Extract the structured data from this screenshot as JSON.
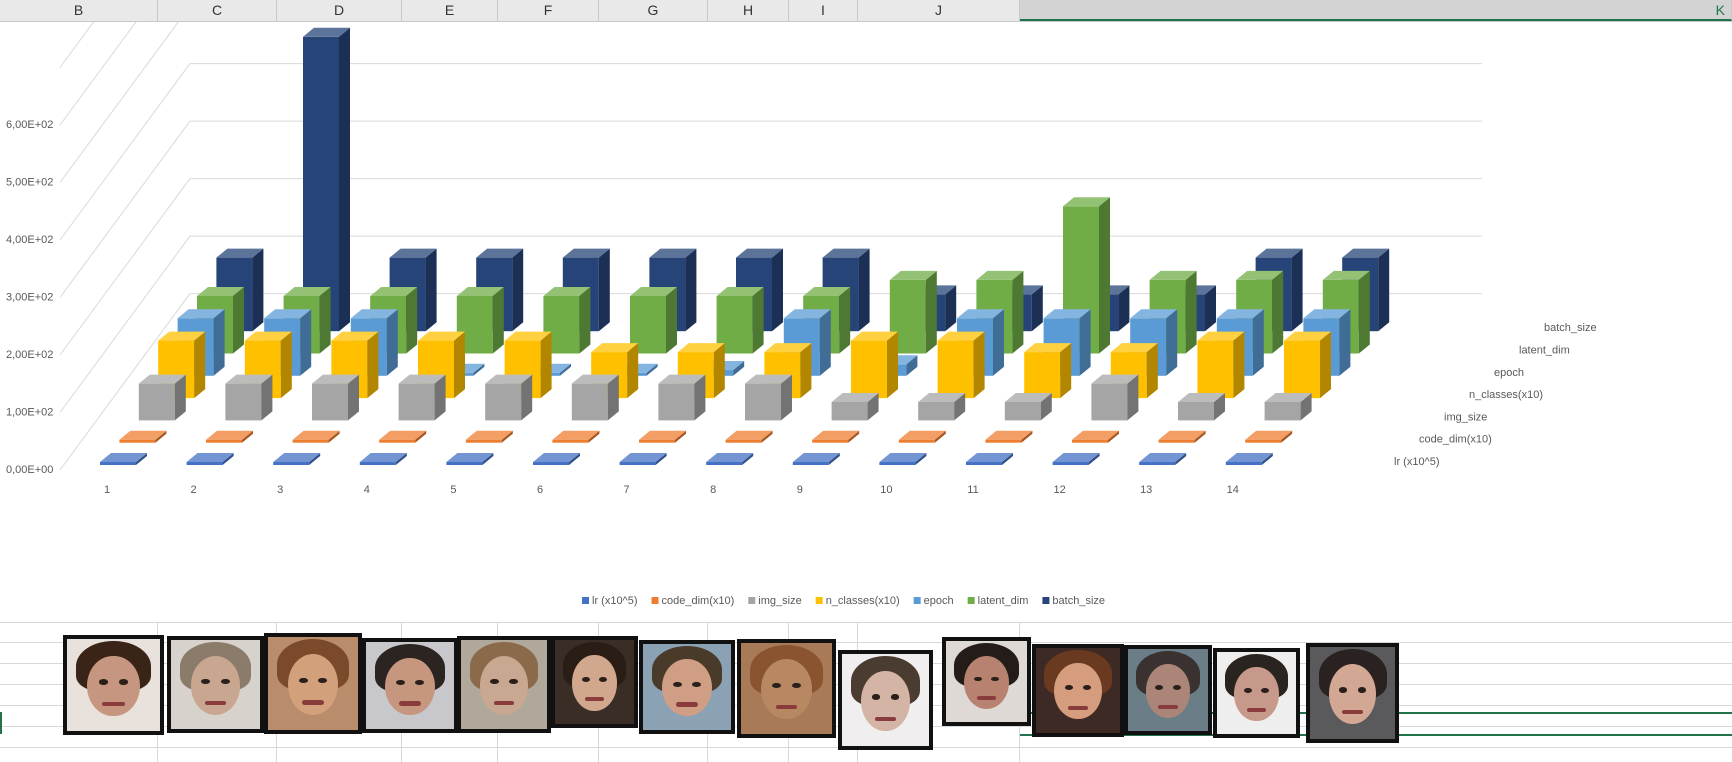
{
  "column_headers": [
    "B",
    "C",
    "D",
    "E",
    "F",
    "G",
    "H",
    "I",
    "J",
    "K"
  ],
  "selected_column": "K",
  "chart_data": {
    "type": "bar",
    "subtype": "3d-column",
    "categories": [
      "1",
      "2",
      "3",
      "4",
      "5",
      "6",
      "7",
      "8",
      "9",
      "10",
      "11",
      "12",
      "13",
      "14"
    ],
    "y_tick_labels": [
      "0,00E+00",
      "1,00E+02",
      "2,00E+02",
      "3,00E+02",
      "4,00E+02",
      "5,00E+02",
      "6,00E+02"
    ],
    "ylim": [
      0,
      700
    ],
    "grid": true,
    "legend_position": "bottom",
    "series": [
      {
        "name": "lr (x10^5)",
        "color": "#4472c4",
        "values": [
          2,
          2,
          2,
          2,
          5,
          5,
          5,
          5,
          5,
          5,
          5,
          5,
          5,
          5
        ]
      },
      {
        "name": "code_dim(x10)",
        "color": "#ed7d31",
        "values": [
          5,
          5,
          5,
          5,
          5,
          5,
          5,
          5,
          5,
          5,
          5,
          5,
          5,
          5
        ]
      },
      {
        "name": "img_size",
        "color": "#a5a5a5",
        "values": [
          64,
          64,
          64,
          64,
          64,
          64,
          64,
          64,
          32,
          32,
          32,
          64,
          32,
          32
        ]
      },
      {
        "name": "n_classes(x10)",
        "color": "#ffc000",
        "values": [
          100,
          100,
          100,
          100,
          100,
          80,
          80,
          80,
          100,
          100,
          80,
          80,
          100,
          100
        ]
      },
      {
        "name": "epoch",
        "color": "#5b9bd5",
        "values": [
          100,
          100,
          100,
          5,
          5,
          5,
          10,
          100,
          20,
          100,
          100,
          100,
          100,
          100
        ]
      },
      {
        "name": "latent_dim",
        "color": "#70ad47",
        "values": [
          100,
          100,
          100,
          100,
          100,
          100,
          100,
          100,
          128,
          128,
          256,
          128,
          128,
          128
        ]
      },
      {
        "name": "batch_size",
        "color": "#264478",
        "values": [
          128,
          512,
          128,
          128,
          128,
          128,
          128,
          128,
          64,
          64,
          64,
          64,
          128,
          128
        ]
      }
    ]
  },
  "faces": [
    {
      "hair": "#3a2418",
      "skin": "#c79680",
      "bg": "#e9e2dc"
    },
    {
      "hair": "#8a7b6a",
      "skin": "#c9a690",
      "bg": "#d7d2cc"
    },
    {
      "hair": "#7a4a2a",
      "skin": "#d3a07c",
      "bg": "#b98c6b"
    },
    {
      "hair": "#2b2420",
      "skin": "#c6977e",
      "bg": "#c8c8cc"
    },
    {
      "hair": "#8a6a4a",
      "skin": "#c9a892",
      "bg": "#b0a89a"
    },
    {
      "hair": "#2a1d16",
      "skin": "#d1a88e",
      "bg": "#3a2d25"
    },
    {
      "hair": "#4a3a2a",
      "skin": "#cf9e84",
      "bg": "#8aa2b4"
    },
    {
      "hair": "#8a5430",
      "skin": "#b88863",
      "bg": "#a87a58"
    },
    {
      "hair": "#4a3c30",
      "skin": "#d4b4a4",
      "bg": "#f0eeee"
    },
    {
      "hair": "#241c18",
      "skin": "#b88270",
      "bg": "#dfd9d6"
    },
    {
      "hair": "#6a3a20",
      "skin": "#d59c7e",
      "bg": "#3d2a24"
    },
    {
      "hair": "#3a3230",
      "skin": "#ab8678",
      "bg": "#6b7e88"
    },
    {
      "hair": "#2a2420",
      "skin": "#c7998a",
      "bg": "#eeeeee"
    },
    {
      "hair": "#2a2220",
      "skin": "#d2a894",
      "bg": "#5a5a5c"
    }
  ]
}
